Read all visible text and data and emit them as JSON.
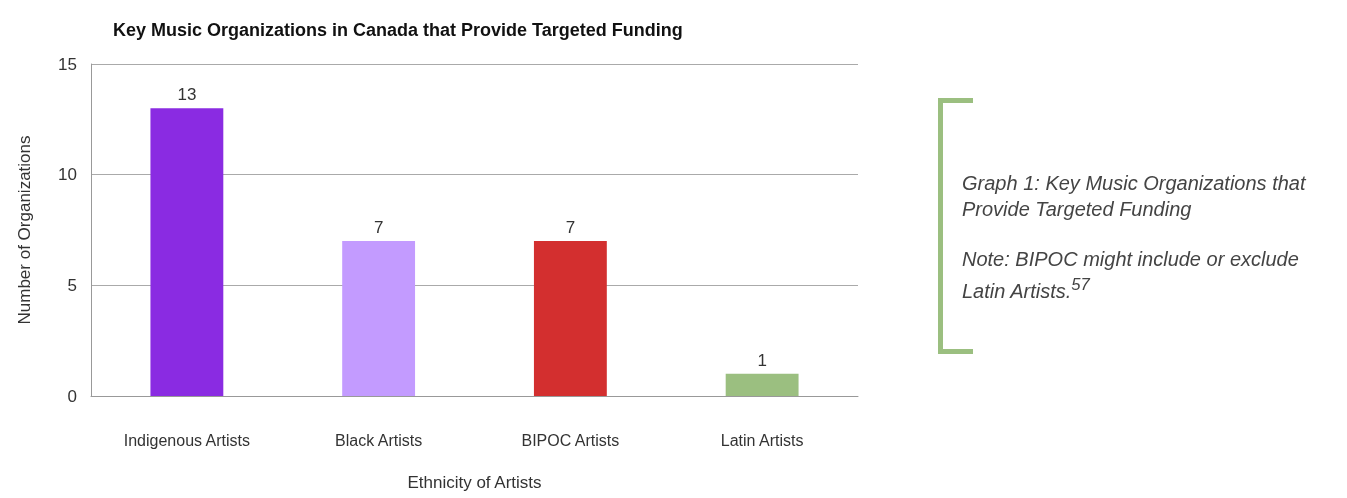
{
  "chart_data": {
    "type": "bar",
    "title": "Key Music Organizations in Canada that Provide Targeted Funding",
    "xlabel": "Ethnicity of Artists",
    "ylabel": "Number of Organizations",
    "categories": [
      "Indigenous Artists",
      "Black Artists",
      "BIPOC Artists",
      "Latin Artists"
    ],
    "values": [
      13,
      7,
      7,
      1
    ],
    "colors": [
      "#8a2be2",
      "#c39bff",
      "#d32f2f",
      "#9bbf80"
    ],
    "ylim": [
      0,
      15
    ],
    "yticks": [
      0,
      5,
      10,
      15
    ],
    "grid": "y",
    "data_labels": true,
    "annotations": [
      "Graph 1: Key Music Organizations that Provide Targeted Funding",
      "Note: BIPOC might include or exclude Latin Artists.$^{57}$"
    ]
  }
}
